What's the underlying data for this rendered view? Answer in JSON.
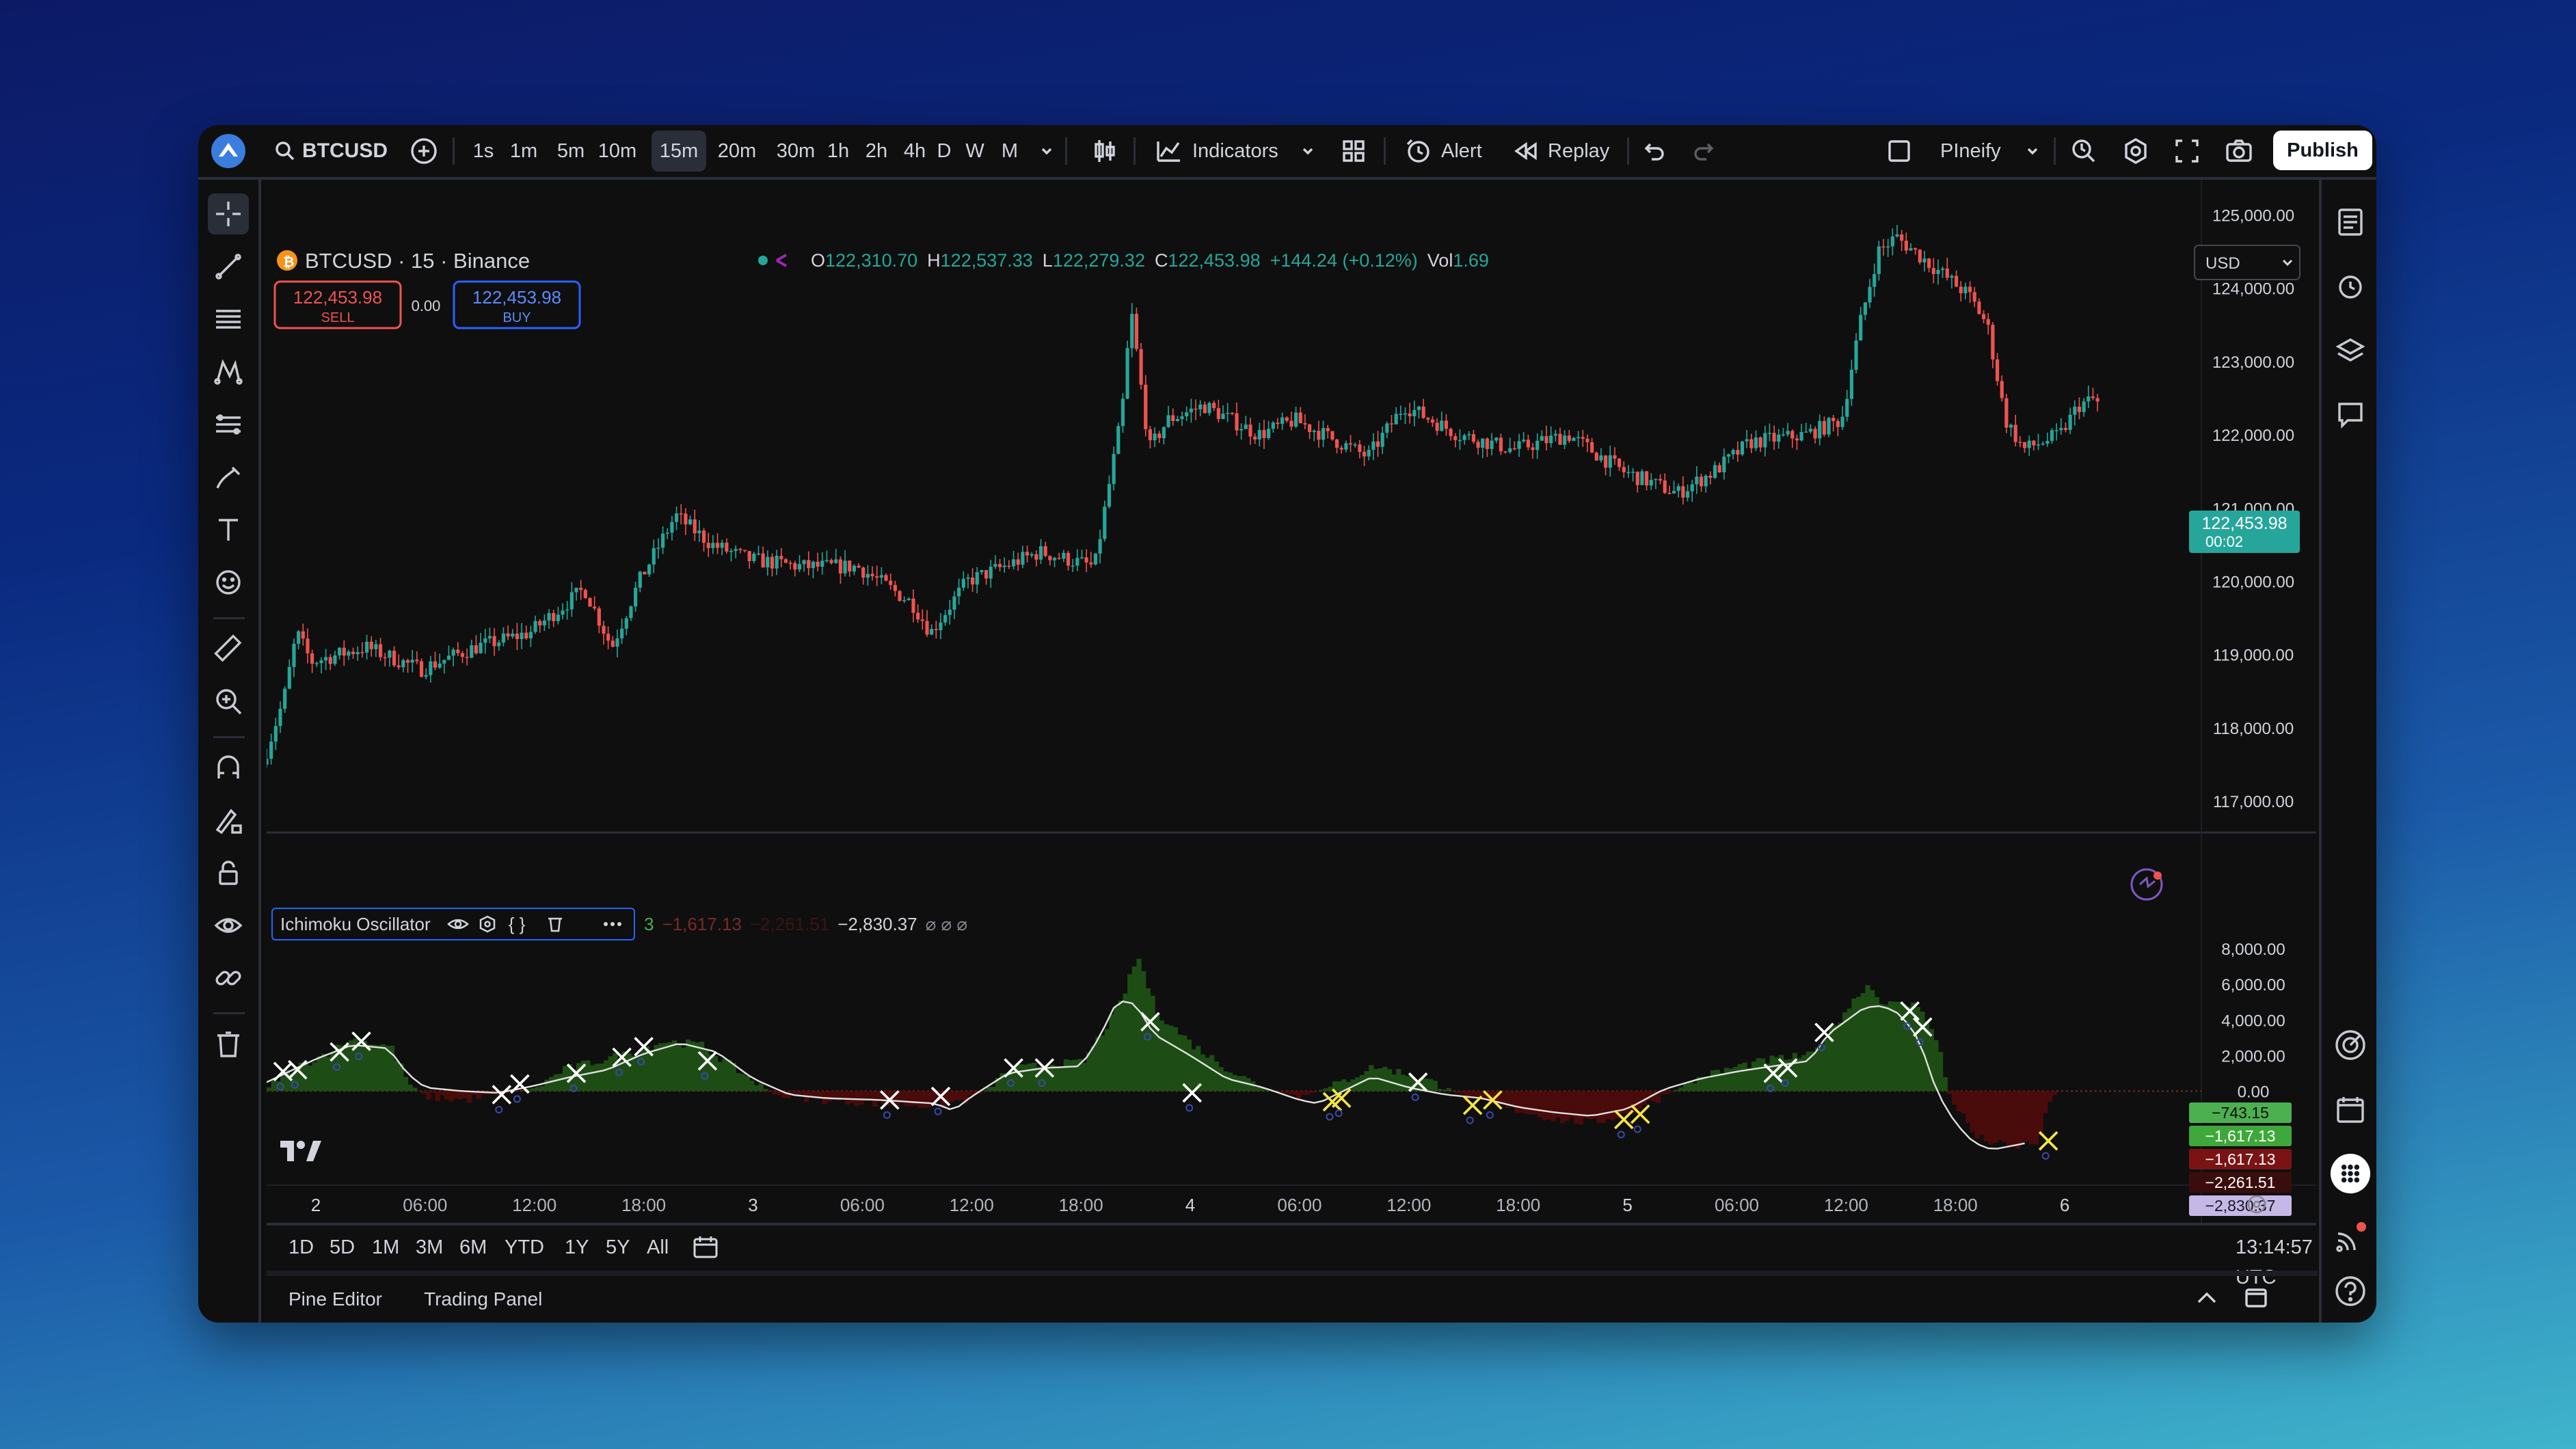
{
  "toolbar": {
    "symbol": "BTCUSD",
    "timeframes": [
      "1s",
      "1m",
      "5m",
      "10m",
      "15m",
      "20m",
      "30m",
      "1h",
      "2h",
      "4h",
      "D",
      "W",
      "M"
    ],
    "active_timeframe": "15m",
    "indicators_label": "Indicators",
    "alert_label": "Alert",
    "replay_label": "Replay",
    "layout_name": "PIneify",
    "publish_label": "Publish"
  },
  "legend": {
    "title": "BTCUSD · 15 · Binance",
    "o_label": "O",
    "o_value": "122,310.70",
    "h_label": "H",
    "h_value": "122,537.33",
    "l_label": "L",
    "l_value": "122,279.32",
    "c_label": "C",
    "c_value": "122,453.98",
    "change": "+144.24 (+0.12%)",
    "vol_label": "Vol",
    "vol_value": "1.69",
    "sell_price": "122,453.98",
    "sell_label": "SELL",
    "spread": "0.00",
    "buy_price": "122,453.98",
    "buy_label": "BUY",
    "currency": "USD"
  },
  "indicator": {
    "name": "Ichimoku Oscillator",
    "value_1": "3",
    "value_2": "−1,617.13",
    "value_3": "−2,261.51",
    "value_4": "−2,830.37",
    "empty_marks": "⌀ ⌀ ⌀"
  },
  "price_badge": {
    "price": "122,453.98",
    "countdown": "00:02"
  },
  "osc_badges": [
    "−743.15",
    "−1,617.13",
    "−1,617.13",
    "−2,261.51",
    "−2,830.37"
  ],
  "ranges": [
    "1D",
    "5D",
    "1M",
    "3M",
    "6M",
    "YTD",
    "1Y",
    "5Y",
    "All"
  ],
  "clock": "13:14:57 UTC",
  "panels": [
    "Pine Editor",
    "Trading Panel"
  ],
  "colors": {
    "up": "#26a69a",
    "down": "#ef5350",
    "cloud_pos": "#1d4d14",
    "cloud_neg": "#4a0b0b",
    "signal_yellow": "#f5e642"
  },
  "chart_data": [
    {
      "type": "candlestick",
      "title": "BTCUSD · 15 · Binance",
      "x_ticks": [
        "2",
        "06:00",
        "12:00",
        "18:00",
        "3",
        "06:00",
        "12:00",
        "18:00",
        "4",
        "06:00",
        "12:00",
        "18:00",
        "5",
        "06:00",
        "12:00",
        "18:00",
        "6"
      ],
      "y_ticks": [
        "117,000.00",
        "118,000.00",
        "119,000.00",
        "120,000.00",
        "121,000.00",
        "122,000.00",
        "123,000.00",
        "124,000.00",
        "125,000.00"
      ],
      "ylim": [
        116600,
        125200
      ],
      "xlim_hours": [
        -2.7,
        103.5
      ],
      "anchors": [
        [
          -2.7,
          117500
        ],
        [
          -1.5,
          118400
        ],
        [
          -0.8,
          119300
        ],
        [
          0,
          118900
        ],
        [
          3,
          119100
        ],
        [
          6,
          118800
        ],
        [
          9,
          119100
        ],
        [
          12,
          119300
        ],
        [
          15,
          119900
        ],
        [
          16.5,
          119100
        ],
        [
          18,
          120000
        ],
        [
          20,
          120900
        ],
        [
          22,
          120500
        ],
        [
          24,
          120300
        ],
        [
          27,
          120200
        ],
        [
          30,
          120200
        ],
        [
          33,
          119700
        ],
        [
          34,
          119300
        ],
        [
          36,
          120000
        ],
        [
          40,
          120400
        ],
        [
          43,
          120200
        ],
        [
          44.5,
          122300
        ],
        [
          45,
          123700
        ],
        [
          46,
          121800
        ],
        [
          47,
          122200
        ],
        [
          49,
          122400
        ],
        [
          52,
          122000
        ],
        [
          54,
          122200
        ],
        [
          58,
          121700
        ],
        [
          60,
          122400
        ],
        [
          63,
          122000
        ],
        [
          66,
          121800
        ],
        [
          69,
          122000
        ],
        [
          72,
          121500
        ],
        [
          74,
          121300
        ],
        [
          75,
          121200
        ],
        [
          77,
          121500
        ],
        [
          79,
          121900
        ],
        [
          82,
          122000
        ],
        [
          84,
          122200
        ],
        [
          85,
          123500
        ],
        [
          86,
          124500
        ],
        [
          87,
          124700
        ],
        [
          89,
          124300
        ],
        [
          91,
          123900
        ],
        [
          92,
          123500
        ],
        [
          93,
          122200
        ],
        [
          94,
          121800
        ],
        [
          96,
          122000
        ],
        [
          97,
          122400
        ],
        [
          98,
          122500
        ]
      ],
      "last_price": 122453.98
    },
    {
      "type": "area",
      "title": "Ichimoku Oscillator",
      "y_ticks": [
        "0.00",
        "2,000.00",
        "4,000.00",
        "6,000.00",
        "8,000.00"
      ],
      "ylim": [
        -4100,
        8200
      ],
      "cloud_anchors": [
        [
          -2.7,
          200
        ],
        [
          -2,
          900
        ],
        [
          0,
          1900
        ],
        [
          2,
          2900
        ],
        [
          4,
          2500
        ],
        [
          5,
          400
        ],
        [
          6,
          -300
        ],
        [
          8,
          -500
        ],
        [
          10,
          -200
        ],
        [
          12,
          200
        ],
        [
          13.5,
          1200
        ],
        [
          15,
          1600
        ],
        [
          17,
          2100
        ],
        [
          19,
          2800
        ],
        [
          21,
          2600
        ],
        [
          23,
          1200
        ],
        [
          25,
          -200
        ],
        [
          28,
          -500
        ],
        [
          31,
          -700
        ],
        [
          34,
          -800
        ],
        [
          36,
          -400
        ],
        [
          38,
          1200
        ],
        [
          40,
          1500
        ],
        [
          42,
          1600
        ],
        [
          44,
          4800
        ],
        [
          45,
          7600
        ],
        [
          46,
          4500
        ],
        [
          48,
          2600
        ],
        [
          50,
          1200
        ],
        [
          52,
          100
        ],
        [
          54,
          -300
        ],
        [
          56,
          400
        ],
        [
          58,
          1400
        ],
        [
          60,
          900
        ],
        [
          62,
          200
        ],
        [
          63,
          -400
        ],
        [
          66,
          -1100
        ],
        [
          68,
          -1600
        ],
        [
          70,
          -1800
        ],
        [
          72,
          -1200
        ],
        [
          74,
          -200
        ],
        [
          76,
          800
        ],
        [
          78,
          1400
        ],
        [
          80,
          1800
        ],
        [
          82,
          2000
        ],
        [
          84,
          4700
        ],
        [
          85,
          6000
        ],
        [
          86,
          4900
        ],
        [
          88,
          4800
        ],
        [
          89,
          2300
        ],
        [
          89.5,
          -100
        ],
        [
          91,
          -2600
        ],
        [
          93,
          -3200
        ],
        [
          94.5,
          -2800
        ],
        [
          95,
          -600
        ],
        [
          95.5,
          0
        ]
      ],
      "line_anchors": [
        [
          -2.7,
          500
        ],
        [
          0,
          1800
        ],
        [
          2,
          2600
        ],
        [
          4,
          2400
        ],
        [
          5,
          1000
        ],
        [
          6,
          200
        ],
        [
          8,
          0
        ],
        [
          10,
          -100
        ],
        [
          12,
          300
        ],
        [
          14,
          800
        ],
        [
          16,
          1200
        ],
        [
          18,
          2100
        ],
        [
          20,
          2700
        ],
        [
          22,
          2200
        ],
        [
          24,
          700
        ],
        [
          26,
          -200
        ],
        [
          28,
          -400
        ],
        [
          31,
          -500
        ],
        [
          34,
          -700
        ],
        [
          35,
          -1100
        ],
        [
          36,
          -300
        ],
        [
          38,
          1000
        ],
        [
          40,
          1300
        ],
        [
          42,
          1400
        ],
        [
          43,
          3000
        ],
        [
          44,
          5100
        ],
        [
          45,
          4900
        ],
        [
          46,
          3200
        ],
        [
          48,
          2000
        ],
        [
          50,
          700
        ],
        [
          52,
          200
        ],
        [
          54,
          -500
        ],
        [
          55,
          -700
        ],
        [
          57,
          300
        ],
        [
          58,
          800
        ],
        [
          60,
          200
        ],
        [
          62,
          -200
        ],
        [
          64,
          -400
        ],
        [
          66,
          -900
        ],
        [
          68,
          -1200
        ],
        [
          70,
          -1400
        ],
        [
          72,
          -1000
        ],
        [
          74,
          100
        ],
        [
          76,
          700
        ],
        [
          78,
          1100
        ],
        [
          80,
          1400
        ],
        [
          82,
          1700
        ],
        [
          83,
          3200
        ],
        [
          85,
          4700
        ],
        [
          86,
          4800
        ],
        [
          87,
          4300
        ],
        [
          88,
          2900
        ],
        [
          89,
          -100
        ],
        [
          90,
          -1800
        ],
        [
          91,
          -2900
        ],
        [
          92,
          -3300
        ],
        [
          94,
          -2900
        ]
      ],
      "cross_marks": [
        [
          -1.8,
          1100,
          "white"
        ],
        [
          -1,
          1200,
          "white"
        ],
        [
          1.3,
          2200,
          "white"
        ],
        [
          2.5,
          2800,
          "white"
        ],
        [
          10.2,
          -200,
          "white"
        ],
        [
          11.2,
          400,
          "white"
        ],
        [
          14.3,
          1000,
          "white"
        ],
        [
          16.8,
          1900,
          "white"
        ],
        [
          18,
          2500,
          "white"
        ],
        [
          21.5,
          1700,
          "white"
        ],
        [
          31.5,
          -500,
          "white"
        ],
        [
          34.3,
          -300,
          "white"
        ],
        [
          38.3,
          1300,
          "white"
        ],
        [
          40,
          1300,
          "white"
        ],
        [
          45.8,
          3900,
          "white"
        ],
        [
          48.1,
          -100,
          "white"
        ],
        [
          55.8,
          -600,
          "yellow"
        ],
        [
          56.3,
          -400,
          "yellow"
        ],
        [
          60.5,
          500,
          "white"
        ],
        [
          63.5,
          -800,
          "yellow"
        ],
        [
          64.6,
          -500,
          "yellow"
        ],
        [
          71.8,
          -1600,
          "yellow"
        ],
        [
          72.7,
          -1300,
          "yellow"
        ],
        [
          80,
          1000,
          "white"
        ],
        [
          80.8,
          1300,
          "white"
        ],
        [
          82.8,
          3300,
          "white"
        ],
        [
          87.5,
          4500,
          "white"
        ],
        [
          88.2,
          3600,
          "white"
        ],
        [
          95.1,
          -2800,
          "yellow"
        ]
      ]
    }
  ]
}
